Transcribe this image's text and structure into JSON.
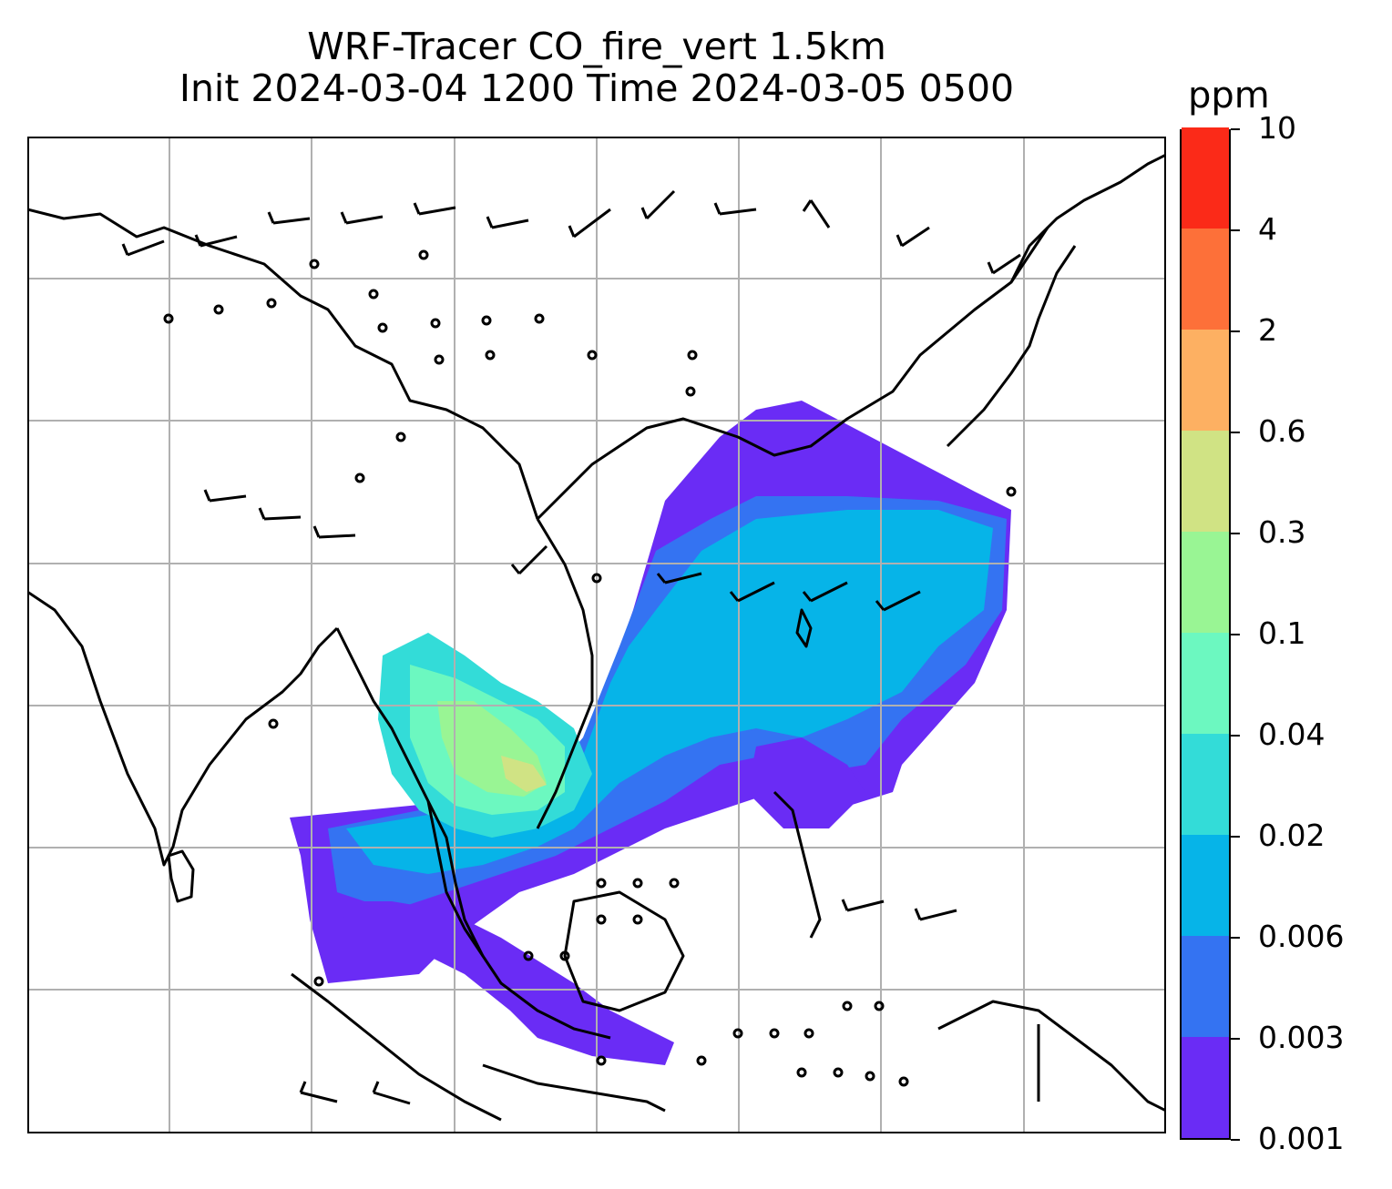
{
  "title": {
    "line1": "WRF-Tracer CO_fire_vert 1.5km",
    "line2": "Init 2024-03-04 1200 Time 2024-03-05 0500"
  },
  "colorbar": {
    "unit": "ppm",
    "levels": [
      {
        "label": "0.001",
        "color": "#6a2cf5"
      },
      {
        "label": "0.003",
        "color": "#3473f2"
      },
      {
        "label": "0.006",
        "color": "#06b4e8"
      },
      {
        "label": "0.02",
        "color": "#33dcd8"
      },
      {
        "label": "0.04",
        "color": "#6cf8c0"
      },
      {
        "label": "0.1",
        "color": "#99f594"
      },
      {
        "label": "0.3",
        "color": "#d0e384"
      },
      {
        "label": "0.6",
        "color": "#fdb062"
      },
      {
        "label": "2",
        "color": "#fd7039"
      },
      {
        "label": "4",
        "color": "#fb2a18"
      },
      {
        "label": "10",
        "color": null
      }
    ]
  },
  "map": {
    "region": "Southeast Asia / South China Sea",
    "gridlines": true,
    "coastline_color": "#000000",
    "wind_barb_color": "#000000"
  }
}
